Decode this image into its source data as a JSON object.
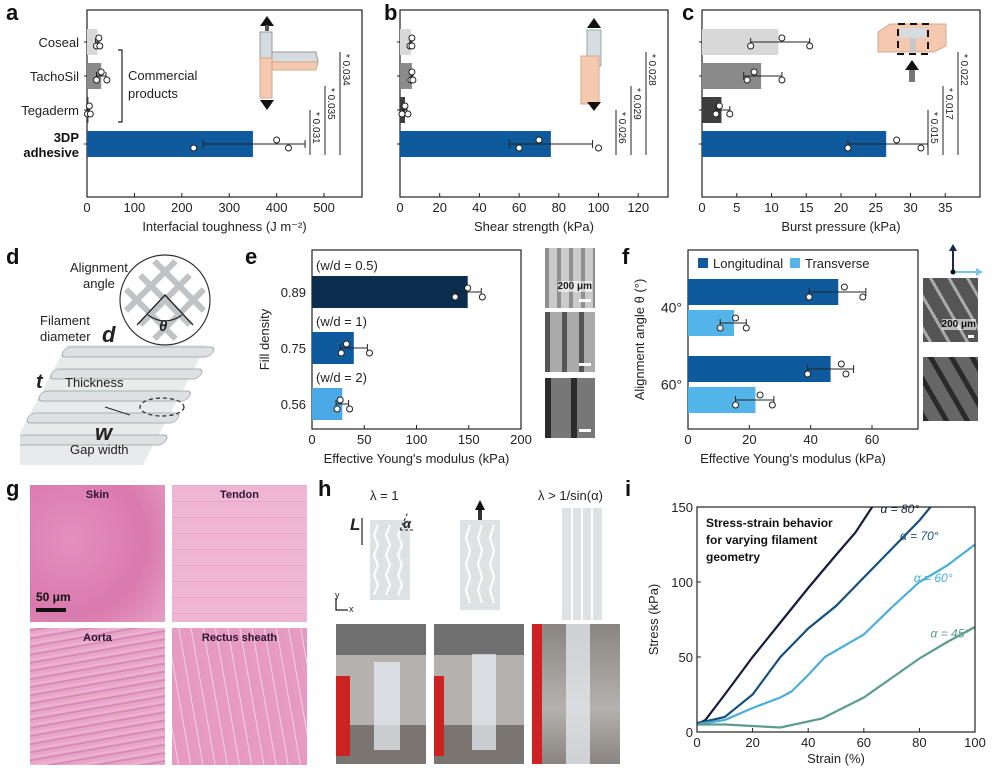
{
  "panel_labels": {
    "a": "a",
    "b": "b",
    "c": "c",
    "d": "d",
    "e": "e",
    "f": "f",
    "g": "g",
    "h": "h",
    "i": "i"
  },
  "chart_data": [
    {
      "id": "a",
      "type": "bar",
      "orientation": "horizontal",
      "categories": [
        "Coseal",
        "TachoSil",
        "Tegaderm",
        "3DP adhesive"
      ],
      "values": [
        22,
        30,
        3,
        350
      ],
      "error_low": [
        18,
        20,
        1,
        245
      ],
      "error_high": [
        25,
        40,
        5,
        460
      ],
      "points": [
        [
          20,
          25,
          27
        ],
        [
          20,
          30,
          42
        ],
        [
          1,
          5,
          7
        ],
        [
          225,
          400,
          425
        ]
      ],
      "bar_colors": [
        "#d8d8d8",
        "#8a8a8a",
        "#3e3e3e",
        "#0e5a9c"
      ],
      "xlabel": "Interfacial toughness (J m⁻²)",
      "xlim": [
        0,
        580
      ],
      "xticks": [
        0,
        100,
        200,
        300,
        400,
        500
      ],
      "bracket_label": [
        "Commercial",
        "products"
      ],
      "significance": [
        {
          "label": "* 0.031"
        },
        {
          "label": "* 0.035"
        },
        {
          "label": "* 0.034"
        }
      ]
    },
    {
      "id": "b",
      "type": "bar",
      "orientation": "horizontal",
      "categories": [
        "Coseal",
        "TachoSil",
        "Tegaderm",
        "3DP adhesive"
      ],
      "values": [
        5.5,
        6,
        2.5,
        76
      ],
      "error_low": [
        5,
        5.5,
        1.5,
        55
      ],
      "error_high": [
        6,
        6.5,
        3.5,
        97
      ],
      "points": [
        [
          5,
          6,
          6
        ],
        [
          5.5,
          6,
          6.5
        ],
        [
          1,
          2.5,
          4
        ],
        [
          60,
          70,
          100
        ]
      ],
      "bar_colors": [
        "#d8d8d8",
        "#8a8a8a",
        "#3e3e3e",
        "#0e5a9c"
      ],
      "xlabel": "Shear strength (kPa)",
      "xlim": [
        0,
        135
      ],
      "xticks": [
        0,
        20,
        40,
        60,
        80,
        100,
        120
      ],
      "significance": [
        {
          "label": "* 0.026"
        },
        {
          "label": "* 0.029"
        },
        {
          "label": "* 0.028"
        }
      ]
    },
    {
      "id": "c",
      "type": "bar",
      "orientation": "horizontal",
      "categories": [
        "Coseal",
        "TachoSil",
        "Tegaderm",
        "3DP adhesive"
      ],
      "values": [
        11,
        8.5,
        2.8,
        26.5
      ],
      "error_low": [
        7,
        6,
        2,
        21
      ],
      "error_high": [
        15.5,
        11.5,
        4,
        32.5
      ],
      "points": [
        [
          7,
          11.5,
          15.5
        ],
        [
          6.5,
          7.5,
          11.5
        ],
        [
          2,
          2.5,
          4
        ],
        [
          21,
          28,
          31.5
        ]
      ],
      "bar_colors": [
        "#d8d8d8",
        "#8a8a8a",
        "#3e3e3e",
        "#0e5a9c"
      ],
      "xlabel": "Burst pressure (kPa)",
      "xlim": [
        0,
        40
      ],
      "xticks": [
        0,
        5,
        10,
        15,
        20,
        25,
        30,
        35
      ],
      "significance": [
        {
          "label": "* 0.015"
        },
        {
          "label": "* 0.017"
        },
        {
          "label": "* 0.022"
        }
      ]
    },
    {
      "id": "e",
      "type": "bar",
      "orientation": "horizontal",
      "categories": [
        "0.89",
        "0.75",
        "0.56"
      ],
      "annotations": [
        "(w/d = 0.5)",
        "(w/d = 1)",
        "(w/d = 2)"
      ],
      "values": [
        149,
        40,
        29
      ],
      "error_low": [
        137,
        27,
        23
      ],
      "error_high": [
        162,
        53,
        35
      ],
      "points": [
        [
          137,
          149,
          163
        ],
        [
          28,
          33,
          55
        ],
        [
          24,
          27,
          36
        ]
      ],
      "bar_colors": [
        "#0b2e4f",
        "#0e5a9c",
        "#4ba8e6"
      ],
      "xlabel": "Effective Young's modulus (kPa)",
      "ylabel": "Fill density",
      "xlim": [
        0,
        200
      ],
      "xticks": [
        0,
        50,
        100,
        150,
        200
      ],
      "scale_bar": "200 μm"
    },
    {
      "id": "f",
      "type": "bar",
      "orientation": "horizontal",
      "categories": [
        "40°",
        "60°"
      ],
      "series": [
        {
          "name": "Longitudinal",
          "color": "#0e5a9c",
          "values": [
            49,
            46.5
          ],
          "error_low": [
            39.5,
            39
          ],
          "error_high": [
            58,
            54
          ],
          "points": [
            [
              39.5,
              51,
              57
            ],
            [
              39,
              50,
              51.5
            ]
          ]
        },
        {
          "name": "Transverse",
          "color": "#53b4ea",
          "values": [
            15,
            22
          ],
          "error_low": [
            10.5,
            15.5
          ],
          "error_high": [
            19,
            28
          ],
          "points": [
            [
              10.5,
              15.5,
              19
            ],
            [
              15.5,
              23.5,
              27.5
            ]
          ]
        }
      ],
      "xlabel": "Effective Young's modulus (kPa)",
      "ylabel": "Alignment angle θ (°)",
      "xlim": [
        0,
        75
      ],
      "xticks": [
        0,
        20,
        40,
        60
      ],
      "legend": "top",
      "scale_bar": "200 μm"
    },
    {
      "id": "i",
      "type": "line",
      "title": "Stress-strain behavior for varying filament geometry",
      "title_lines": [
        "Stress-strain behavior",
        "for varying filament",
        "geometry"
      ],
      "xlabel": "Strain (%)",
      "ylabel": "Stress (kPa)",
      "xlim": [
        0,
        100
      ],
      "ylim": [
        0,
        150
      ],
      "xticks": [
        0,
        20,
        40,
        60,
        80,
        100
      ],
      "yticks": [
        0,
        50,
        100,
        150
      ],
      "series": [
        {
          "name": "α = 80°",
          "color": "#161b3d",
          "x": [
            0,
            3,
            10,
            20,
            30,
            40,
            50,
            57,
            63
          ],
          "y": [
            5,
            8,
            25,
            50,
            73,
            96,
            118,
            133,
            150
          ]
        },
        {
          "name": "α = 70°",
          "color": "#17507e",
          "x": [
            0,
            3,
            10,
            20,
            30,
            40,
            50,
            60,
            70,
            80,
            84
          ],
          "y": [
            6,
            7,
            10,
            25,
            50,
            69,
            84,
            103,
            122,
            141,
            150
          ]
        },
        {
          "name": "α = 60°",
          "color": "#4aaed8",
          "x": [
            0,
            3,
            10,
            20,
            30,
            34,
            40,
            46,
            60,
            70,
            80,
            90,
            100
          ],
          "y": [
            5,
            6,
            8,
            16,
            23,
            27,
            38,
            50,
            65,
            83,
            100,
            111,
            125
          ]
        },
        {
          "name": "α = 45°",
          "color": "#5c9c8d",
          "x": [
            0,
            3,
            10,
            20,
            30,
            45,
            60,
            70,
            80,
            90,
            100
          ],
          "y": [
            5,
            5,
            5,
            4,
            3,
            9,
            23,
            36,
            49,
            60,
            70
          ]
        }
      ]
    }
  ],
  "panel_d": {
    "alignment_angle": [
      "Alignment",
      "angle"
    ],
    "theta": "θ",
    "filament_diameter": [
      "Filament",
      "diameter"
    ],
    "d": "d",
    "t": "t",
    "thickness": "Thickness",
    "w": "w",
    "gap_width": "Gap width"
  },
  "panel_g": {
    "tiles": [
      "Skin",
      "Tendon",
      "Aorta",
      "Rectus sheath"
    ],
    "scale_bar": "50 μm"
  },
  "panel_h": {
    "labels": [
      "λ = 1",
      "",
      "λ > 1/sin(α)"
    ],
    "L": "L",
    "alpha": "α",
    "axis_y": "y",
    "axis_x": "x"
  }
}
